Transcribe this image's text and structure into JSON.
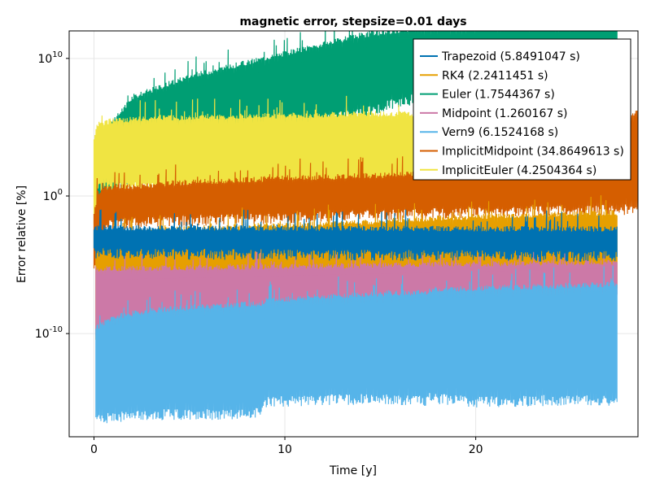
{
  "chart_data": {
    "type": "line",
    "title": "magnetic error, stepsize=0.01 days",
    "xlabel": "Time [y]",
    "ylabel": "Error relative [%]",
    "x_scale": "linear",
    "y_scale": "log10",
    "xlim": [
      -1.3,
      28.5
    ],
    "ylim_exponent": [
      -17.5,
      12
    ],
    "x_ticks": [
      0,
      10,
      20
    ],
    "x_tick_labels": [
      "0",
      "10",
      "20"
    ],
    "y_ticks_exponent": [
      -10,
      0,
      10
    ],
    "y_tick_labels": [
      {
        "base": "10",
        "exp": "-10"
      },
      {
        "base": "10",
        "exp": "0"
      },
      {
        "base": "10",
        "exp": "10"
      }
    ],
    "grid": true,
    "legend_position": "top-right",
    "series": [
      {
        "name": "Trapezoid (5.8491047 s)",
        "color": "#0072B2",
        "x": [
          0,
          27.4
        ],
        "log10_low": [
          -3.8,
          -4.0
        ],
        "log10_high": [
          -2.5,
          -2.6
        ]
      },
      {
        "name": "RK4 (2.2411451 s)",
        "color": "#E69F00",
        "x": [
          0.1,
          0.5,
          1,
          3,
          6,
          10,
          14,
          18,
          22,
          27.4
        ],
        "log10_low": [
          -10,
          -8.5,
          -7.8,
          -7.6,
          -7.3,
          -7.1,
          -7.0,
          -6.9,
          -6.8,
          -6.4
        ],
        "log10_high": [
          -3.5,
          -3.0,
          -2.9,
          -2.7,
          -2.5,
          -2.3,
          -2.1,
          -1.8,
          -1.6,
          -1.4
        ]
      },
      {
        "name": "Euler (1.7544367 s)",
        "color": "#009E73",
        "x": [
          0.1,
          2,
          5,
          8,
          11,
          14,
          17,
          20,
          22,
          27.4
        ],
        "log10_low": [
          -0.5,
          2.0,
          3.5,
          4.5,
          5.5,
          6.5,
          7.5,
          8.5,
          9.5,
          11.0
        ],
        "log10_high": [
          3.5,
          7.0,
          8.5,
          9.5,
          10.5,
          11.5,
          12,
          12,
          12,
          12
        ]
      },
      {
        "name": "Midpoint (1.260167 s)",
        "color": "#CC79A7",
        "x": [
          0.1,
          27.4
        ],
        "log10_low": [
          -9.5,
          -6.8
        ],
        "log10_high": [
          -5.5,
          -5.0
        ]
      },
      {
        "name": "Vern9 (6.1524168 s)",
        "color": "#56B4E9",
        "x": [
          0.1,
          1,
          3,
          6,
          8.8,
          9,
          12,
          15,
          17.4,
          17.6,
          20,
          23,
          25,
          27.4
        ],
        "log10_low": [
          -15.9,
          -15.7,
          -15.5,
          -15.5,
          -15.4,
          -14.6,
          -14.4,
          -14.4,
          -14.5,
          -14.3,
          -14.6,
          -14.5,
          -14.4,
          -14.5
        ],
        "log10_high": [
          -9.8,
          -9.0,
          -8.5,
          -8.2,
          -8.0,
          -7.8,
          -7.5,
          -7.3,
          -7.2,
          -7.0,
          -6.9,
          -6.8,
          -6.7,
          -6.6
        ]
      },
      {
        "name": "ImplicitMidpoint (34.8649613 s)",
        "color": "#D55E00",
        "x": [
          0.0,
          0.2,
          0.5,
          2,
          5,
          10,
          15,
          20,
          25,
          28.5
        ],
        "log10_low": [
          -5.0,
          -3.0,
          -1.8,
          -1.6,
          -1.4,
          -1.2,
          -1.0,
          -0.8,
          -0.7,
          -0.6
        ],
        "log10_high": [
          -1.5,
          0.0,
          0.4,
          0.5,
          0.8,
          1.1,
          1.3,
          1.6,
          1.9,
          6.0
        ]
      },
      {
        "name": "ImplicitEuler (4.2504364 s)",
        "color": "#F0E442",
        "x": [
          0.0,
          0.2,
          1,
          4,
          8,
          12,
          16,
          20,
          24,
          27.4
        ],
        "log10_low": [
          -2.0,
          1.0,
          1.0,
          1.0,
          1.0,
          1.0,
          1.0,
          1.0,
          1.0,
          1.0
        ],
        "log10_high": [
          4.0,
          5.0,
          5.3,
          5.5,
          5.6,
          5.7,
          5.8,
          5.8,
          5.8,
          5.9
        ]
      }
    ]
  }
}
